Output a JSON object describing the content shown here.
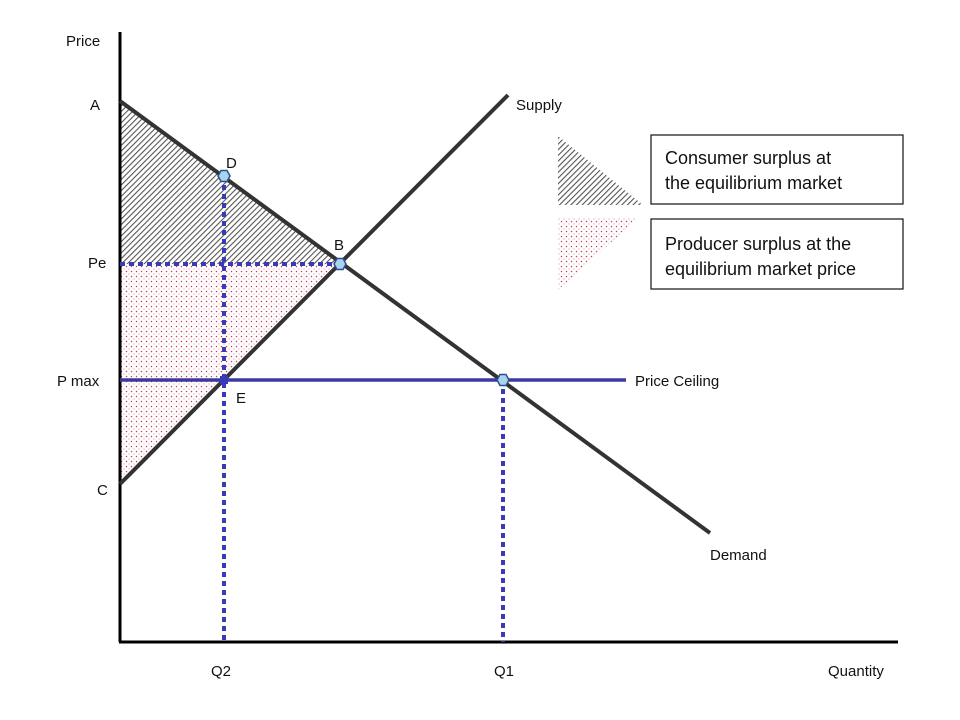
{
  "axes": {
    "y_label": "Price",
    "x_label": "Quantity"
  },
  "price_labels": {
    "a": "A",
    "pe": "Pe",
    "pmax": "P max",
    "c": "C"
  },
  "quantity_labels": {
    "q2": "Q2",
    "q1": "Q1"
  },
  "point_labels": {
    "d": "D",
    "b": "B",
    "e": "E"
  },
  "curves": {
    "supply": "Supply",
    "demand": "Demand",
    "price_ceiling": "Price Ceiling"
  },
  "legend": {
    "consumer_surplus": {
      "line1": "Consumer surplus at",
      "line2": "the equilibrium market"
    },
    "producer_surplus": {
      "line1": "Producer surplus at the",
      "line2": "equilibrium market price"
    }
  },
  "colors": {
    "curve": "#333333",
    "axis": "#000000",
    "ceiling": "#3a3aa0",
    "dotted": "#3a3ab8",
    "marker_fill": "#a9d4f0",
    "marker_stroke": "#2b4f8c",
    "consumer_hatch": "#555555",
    "producer_dots": "#c0405a"
  }
}
